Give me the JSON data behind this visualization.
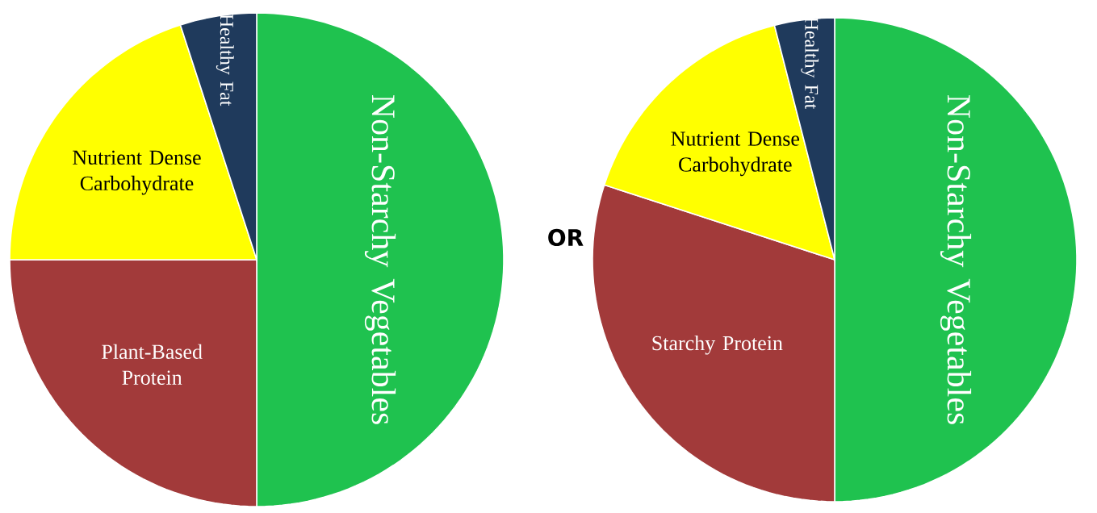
{
  "chart_data": [
    {
      "type": "pie",
      "categories": [
        "Non-Starchy Vegetables",
        "Plant-Based Protein",
        "Nutrient Dense Carbohydrate",
        "Healthy Fat"
      ],
      "values": [
        50,
        25,
        20,
        5
      ],
      "colors": [
        "#1fc24f",
        "#a23a3a",
        "#ffff00",
        "#1f3a5c"
      ],
      "annotations": [
        "OR"
      ]
    },
    {
      "type": "pie",
      "categories": [
        "Non-Starchy Vegetables",
        "Starchy Protein",
        "Nutrient Dense Carbohydrate",
        "Healthy Fat"
      ],
      "values": [
        50,
        30,
        16,
        4
      ],
      "colors": [
        "#1fc24f",
        "#a23a3a",
        "#ffff00",
        "#1f3a5c"
      ]
    }
  ]
}
